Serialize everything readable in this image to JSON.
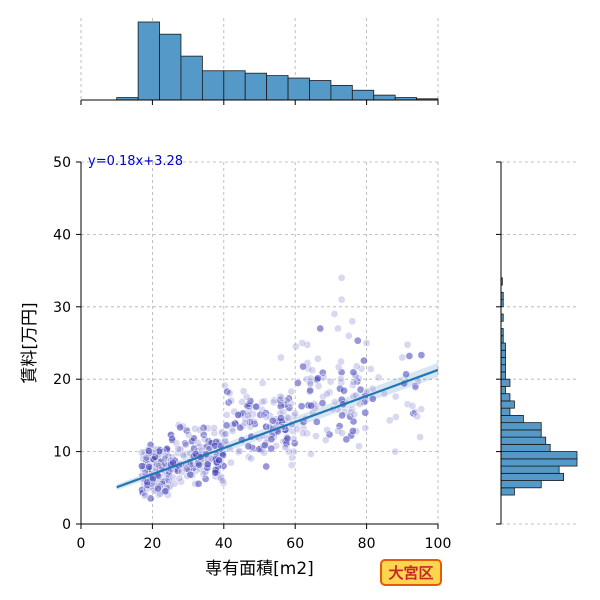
{
  "chart_data": {
    "type": "scatter",
    "title": "",
    "xlabel": "専有面積[m2]",
    "ylabel": "賃料[万円]",
    "xlim": [
      0,
      100
    ],
    "ylim": [
      0,
      50
    ],
    "xticks": [
      "0",
      "20",
      "40",
      "60",
      "80",
      "100"
    ],
    "yticks": [
      "0",
      "10",
      "20",
      "30",
      "40",
      "50"
    ],
    "grid": true,
    "regression": {
      "equation": "y=0.18x+3.28",
      "slope": 0.18,
      "intercept": 3.28,
      "x_range": [
        10,
        100
      ]
    },
    "marginal_x_histogram": {
      "bin_width": 6,
      "bins": [
        [
          10,
          1
        ],
        [
          16,
          32
        ],
        [
          22,
          27
        ],
        [
          28,
          18
        ],
        [
          34,
          12
        ],
        [
          40,
          12
        ],
        [
          46,
          11
        ],
        [
          52,
          10
        ],
        [
          58,
          9
        ],
        [
          64,
          8
        ],
        [
          70,
          6
        ],
        [
          76,
          4
        ],
        [
          82,
          2
        ],
        [
          88,
          1
        ],
        [
          94,
          0.5
        ]
      ]
    },
    "marginal_y_histogram": {
      "bin_width": 1,
      "bins": [
        [
          4,
          3
        ],
        [
          5,
          9
        ],
        [
          6,
          14
        ],
        [
          7,
          13
        ],
        [
          8,
          17
        ],
        [
          9,
          17
        ],
        [
          10,
          11
        ],
        [
          11,
          10
        ],
        [
          12,
          9
        ],
        [
          13,
          9
        ],
        [
          14,
          5
        ],
        [
          15,
          2
        ],
        [
          16,
          3
        ],
        [
          17,
          2
        ],
        [
          18,
          1
        ],
        [
          19,
          2
        ],
        [
          20,
          1
        ],
        [
          21,
          1
        ],
        [
          22,
          1
        ],
        [
          23,
          1
        ],
        [
          24,
          1
        ],
        [
          25,
          0.5
        ],
        [
          26,
          0.5
        ],
        [
          28,
          0.5
        ],
        [
          30,
          0.5
        ],
        [
          31,
          0.5
        ],
        [
          33,
          0.3
        ]
      ]
    },
    "point_clouds": [
      {
        "x": [
          17,
          25
        ],
        "y": [
          3.5,
          11
        ],
        "n": 170
      },
      {
        "x": [
          25,
          40
        ],
        "y": [
          5,
          14
        ],
        "n": 150
      },
      {
        "x": [
          40,
          60
        ],
        "y": [
          7,
          20
        ],
        "n": 140
      },
      {
        "x": [
          60,
          80
        ],
        "y": [
          9,
          26
        ],
        "n": 95
      },
      {
        "x": [
          80,
          96
        ],
        "y": [
          11,
          25
        ],
        "n": 22
      }
    ],
    "outliers": [
      [
        73,
        34
      ],
      [
        73,
        31
      ],
      [
        71,
        29
      ],
      [
        76,
        28
      ],
      [
        72,
        27
      ],
      [
        75,
        26
      ],
      [
        80,
        25
      ],
      [
        90,
        23
      ],
      [
        95,
        12
      ],
      [
        88,
        10
      ],
      [
        67,
        27
      ],
      [
        85,
        18
      ],
      [
        62,
        25
      ],
      [
        56,
        23
      ]
    ]
  },
  "badge": {
    "text": "大宮区"
  }
}
